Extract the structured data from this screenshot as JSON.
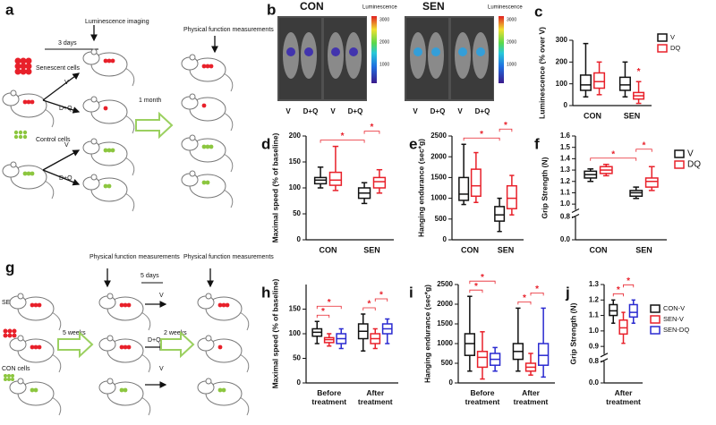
{
  "panel_a": {
    "letter": "a",
    "days": "3 days",
    "imaging": "Luminescence imaging",
    "measure": "Physical function measurements",
    "senescent": "Senescent cells",
    "control": "Control cells",
    "v1": "V",
    "dq1": "D+Q",
    "v2": "V",
    "dq2": "D+Q",
    "month": "1 month"
  },
  "panel_b": {
    "letter": "b",
    "con": "CON",
    "sen": "SEN",
    "scale_titles": [
      "Luminescence",
      "Luminescence"
    ],
    "scale_ticks": [
      [
        "3000",
        "2000",
        "1000"
      ],
      [
        "3000",
        "2000",
        "1000"
      ]
    ],
    "treatments": [
      "V",
      "D+Q",
      "V",
      "D+Q",
      "V",
      "D+Q",
      "V",
      "D+Q"
    ]
  },
  "panel_g": {
    "letter": "g",
    "measure_1": "Physical function measurements",
    "measure_2": "Physical function measurements",
    "days": "5 days",
    "sen_cells": "SEN cells",
    "con_cells": "CON cells",
    "weeks_5": "5 weeks",
    "weeks_2": "2 weeks",
    "v1": "V",
    "dq": "D+Q",
    "v2": "V"
  },
  "chart_data": [
    {
      "type": "box",
      "panel": "c",
      "y_label": "Luminescence (% over V)",
      "categories": [
        "CON",
        "SEN"
      ],
      "series": [
        {
          "name": "V",
          "color": "#111111",
          "values": [
            [
              40,
              70,
              95,
              140,
              285
            ],
            [
              40,
              70,
              95,
              130,
              200
            ]
          ]
        },
        {
          "name": "DQ",
          "color": "#e8202a",
          "values": [
            [
              50,
              80,
              110,
              150,
              200
            ],
            [
              10,
              30,
              45,
              60,
              110
            ]
          ]
        }
      ],
      "ylim": [
        0,
        300
      ],
      "yticks": [
        0,
        100,
        200,
        300
      ],
      "legend": "top-right",
      "significance_color": "#e8202a",
      "significance": [
        {
          "label": "*",
          "a": [
            "SEN",
            "DQ"
          ],
          "b": [
            "SEN",
            "DQ"
          ]
        }
      ]
    },
    {
      "type": "box",
      "panel": "d",
      "y_label": "Maximal speed (% of baseline)",
      "categories": [
        "CON",
        "SEN"
      ],
      "series": [
        {
          "name": "V",
          "color": "#111111",
          "values": [
            [
              100,
              108,
              115,
              120,
              140
            ],
            [
              70,
              80,
              90,
              100,
              110
            ]
          ]
        },
        {
          "name": "DQ",
          "color": "#e8202a",
          "values": [
            [
              95,
              105,
              115,
              130,
              180
            ],
            [
              90,
              100,
              112,
              120,
              135
            ]
          ]
        }
      ],
      "ylim": [
        0,
        200
      ],
      "yticks": [
        0,
        50,
        100,
        150,
        200
      ],
      "legend": null,
      "significance_color": "#e8202a",
      "significance": [
        {
          "label": "*",
          "a": [
            "CON",
            "V"
          ],
          "b": [
            "SEN",
            "V"
          ]
        },
        {
          "label": "*",
          "a": [
            "SEN",
            "V"
          ],
          "b": [
            "SEN",
            "DQ"
          ]
        }
      ]
    },
    {
      "type": "box",
      "panel": "e",
      "y_label": "Hanging endurance (sec*g)",
      "categories": [
        "CON",
        "SEN"
      ],
      "series": [
        {
          "name": "V",
          "color": "#111111",
          "values": [
            [
              850,
              950,
              1100,
              1500,
              2300
            ],
            [
              200,
              450,
              600,
              800,
              1000
            ]
          ]
        },
        {
          "name": "DQ",
          "color": "#e8202a",
          "values": [
            [
              900,
              1050,
              1300,
              1700,
              2100
            ],
            [
              600,
              750,
              1000,
              1300,
              1550
            ]
          ]
        }
      ],
      "ylim": [
        0,
        2500
      ],
      "yticks": [
        0,
        500,
        1000,
        1500,
        2000,
        2500
      ],
      "legend": null,
      "significance_color": "#e8202a",
      "significance": [
        {
          "label": "*",
          "a": [
            "CON",
            "V"
          ],
          "b": [
            "SEN",
            "V"
          ]
        },
        {
          "label": "*",
          "a": [
            "SEN",
            "V"
          ],
          "b": [
            "SEN",
            "DQ"
          ]
        }
      ]
    },
    {
      "type": "box",
      "panel": "f",
      "y_label": "Grip Strength (N)",
      "categories": [
        "CON",
        "SEN"
      ],
      "series": [
        {
          "name": "V",
          "color": "#111111",
          "values": [
            [
              1.2,
              1.23,
              1.26,
              1.29,
              1.31
            ],
            [
              1.05,
              1.07,
              1.1,
              1.12,
              1.15
            ]
          ]
        },
        {
          "name": "DQ",
          "color": "#e8202a",
          "values": [
            [
              1.25,
              1.27,
              1.3,
              1.33,
              1.35
            ],
            [
              1.12,
              1.15,
              1.2,
              1.23,
              1.33
            ]
          ]
        }
      ],
      "ylim": [
        0.95,
        1.6
      ],
      "ybreak": [
        0,
        0.8
      ],
      "yticks": [
        {
          "value": 0,
          "label": "0.0"
        },
        0.8,
        {
          "value": 1,
          "label": "1.0"
        },
        1.1,
        1.2,
        1.3,
        1.4,
        1.5,
        1.6
      ],
      "legend": "right",
      "significance_color": "#e8202a",
      "significance": [
        {
          "label": "*",
          "a": [
            "CON",
            "V"
          ],
          "b": [
            "SEN",
            "V"
          ]
        },
        {
          "label": "*",
          "a": [
            "SEN",
            "V"
          ],
          "b": [
            "SEN",
            "DQ"
          ]
        }
      ]
    },
    {
      "type": "box",
      "panel": "h",
      "y_label": "Maximal speed (% of baseline)",
      "categories": [
        "Before treatment",
        "After treatment"
      ],
      "series": [
        {
          "name": "CON-V",
          "color": "#111111",
          "values": [
            [
              80,
              95,
              103,
              110,
              125
            ],
            [
              65,
              90,
              105,
              120,
              140
            ]
          ]
        },
        {
          "name": "SEN-V",
          "color": "#e8202a",
          "values": [
            [
              75,
              82,
              88,
              92,
              100
            ],
            [
              70,
              80,
              90,
              100,
              110
            ]
          ]
        },
        {
          "name": "SEN-DQ",
          "color": "#2a2ad0",
          "values": [
            [
              70,
              80,
              90,
              100,
              110
            ],
            [
              80,
              100,
              110,
              120,
              130
            ]
          ]
        }
      ],
      "ylim": [
        0,
        200
      ],
      "yticks": [
        0,
        50,
        100,
        150
      ],
      "legend": null,
      "significance_color": "#e8202a",
      "significance": [
        {
          "label": "*",
          "a": [
            "Before treatment",
            "CON-V"
          ],
          "b": [
            "Before treatment",
            "SEN-V"
          ]
        },
        {
          "label": "*",
          "a": [
            "Before treatment",
            "CON-V"
          ],
          "b": [
            "Before treatment",
            "SEN-DQ"
          ]
        },
        {
          "label": "*",
          "a": [
            "After treatment",
            "CON-V"
          ],
          "b": [
            "After treatment",
            "SEN-V"
          ]
        },
        {
          "label": "*",
          "a": [
            "After treatment",
            "SEN-V"
          ],
          "b": [
            "After treatment",
            "SEN-DQ"
          ]
        }
      ]
    },
    {
      "type": "box",
      "panel": "i",
      "y_label": "Hanging endurance (sec*g)",
      "categories": [
        "Before treatment",
        "After treatment"
      ],
      "series": [
        {
          "name": "CON-V",
          "color": "#111111",
          "values": [
            [
              300,
              700,
              1000,
              1250,
              2200
            ],
            [
              300,
              600,
              800,
              1000,
              1900
            ]
          ]
        },
        {
          "name": "SEN-V",
          "color": "#e8202a",
          "values": [
            [
              100,
              400,
              650,
              800,
              1300
            ],
            [
              200,
              300,
              400,
              500,
              750
            ]
          ]
        },
        {
          "name": "SEN-DQ",
          "color": "#2a2ad0",
          "values": [
            [
              300,
              450,
              600,
              750,
              900
            ],
            [
              150,
              450,
              700,
              1000,
              1900
            ]
          ]
        }
      ],
      "ylim": [
        0,
        2500
      ],
      "yticks": [
        0,
        500,
        1000,
        1500,
        2000,
        2500
      ],
      "legend": null,
      "significance_color": "#e8202a",
      "significance": [
        {
          "label": "*",
          "a": [
            "Before treatment",
            "CON-V"
          ],
          "b": [
            "Before treatment",
            "SEN-V"
          ]
        },
        {
          "label": "*",
          "a": [
            "Before treatment",
            "CON-V"
          ],
          "b": [
            "Before treatment",
            "SEN-DQ"
          ]
        },
        {
          "label": "*",
          "a": [
            "After treatment",
            "CON-V"
          ],
          "b": [
            "After treatment",
            "SEN-V"
          ]
        },
        {
          "label": "*",
          "a": [
            "After treatment",
            "SEN-V"
          ],
          "b": [
            "After treatment",
            "SEN-DQ"
          ]
        }
      ]
    },
    {
      "type": "box",
      "panel": "j",
      "y_label": "Grip Strength (N)",
      "categories": [
        "After treatment"
      ],
      "series": [
        {
          "name": "CON-V",
          "color": "#111111",
          "values": [
            [
              1.05,
              1.1,
              1.13,
              1.17,
              1.2
            ]
          ]
        },
        {
          "name": "SEN-V",
          "color": "#e8202a",
          "values": [
            [
              0.92,
              0.98,
              1.02,
              1.07,
              1.12
            ]
          ]
        },
        {
          "name": "SEN-DQ",
          "color": "#2a2ad0",
          "values": [
            [
              1.05,
              1.09,
              1.12,
              1.17,
              1.2
            ]
          ]
        }
      ],
      "ylim": [
        0.85,
        1.3
      ],
      "ybreak": [
        0,
        0.8
      ],
      "yticks": [
        {
          "value": 0,
          "label": "0.0"
        },
        0.8,
        0.9,
        {
          "value": 1,
          "label": "1.0"
        },
        1.1,
        1.2,
        1.3
      ],
      "legend": "right",
      "significance_color": "#e8202a",
      "significance": [
        {
          "label": "*",
          "a": [
            "After treatment",
            "CON-V"
          ],
          "b": [
            "After treatment",
            "SEN-V"
          ]
        },
        {
          "label": "*",
          "a": [
            "After treatment",
            "SEN-V"
          ],
          "b": [
            "After treatment",
            "SEN-DQ"
          ]
        }
      ]
    }
  ]
}
